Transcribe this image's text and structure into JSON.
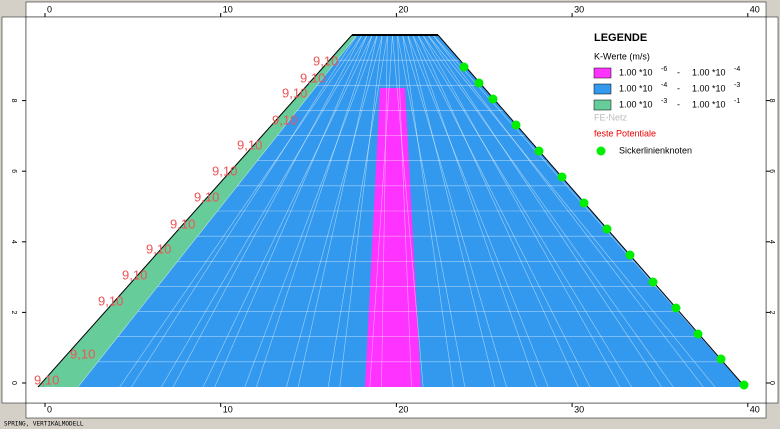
{
  "axes": {
    "x_ticks": [
      0,
      10,
      20,
      30,
      40
    ],
    "y_ticks": [
      0,
      2,
      4,
      6,
      8
    ]
  },
  "potential_label": "9,10",
  "legend": {
    "title": "LEGENDE",
    "subtitle": "K-Werte (m/s)",
    "items": [
      {
        "color": "#ff33ff",
        "from": "1.00  *10",
        "from_exp": "-6",
        "to": "1.00  *10",
        "to_exp": "-4"
      },
      {
        "color": "#3399ee",
        "from": "1.00  *10",
        "from_exp": "-4",
        "to": "1.00  *10",
        "to_exp": "-3"
      },
      {
        "color": "#66cc99",
        "from": "1.00  *10",
        "from_exp": "-3",
        "to": "1.00  *10",
        "to_exp": "-1"
      }
    ],
    "mesh": "FE-Netz",
    "potentials": "feste Potentiale",
    "seepage": "Sickerlinienknoten"
  },
  "footer": "SPRING, VERTIKALMODELL"
}
